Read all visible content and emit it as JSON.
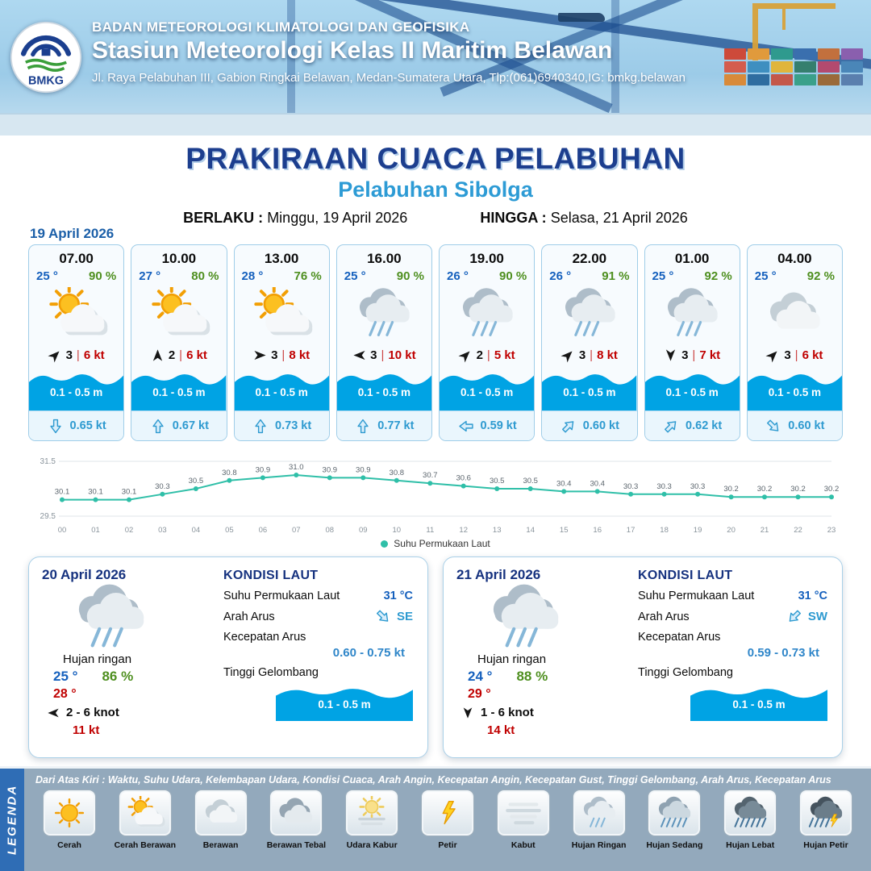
{
  "colors": {
    "accent_dark_blue": "#1c3e8e",
    "accent_light_blue": "#2e9ad0",
    "wave_blue": "#00a3e4",
    "humidity_green": "#4e8f1f",
    "alert_red": "#c00000",
    "sst_line_teal": "#2fbfa8"
  },
  "header": {
    "org": "BADAN METEOROLOGI KLIMATOLOGI DAN GEOFISIKA",
    "station": "Stasiun Meteorologi Kelas II Maritim Belawan",
    "address": "Jl. Raya Pelabuhan III, Gabion Ringkai Belawan, Medan-Sumatera Utara, Tlp:(061)6940340,IG: bmkg.belawan",
    "logo_label": "BMKG"
  },
  "title": {
    "main": "PRAKIRAAN CUACA PELABUHAN",
    "port": "Pelabuhan Sibolga",
    "berlaku_label": "BERLAKU :",
    "berlaku_value": "Minggu, 19 April 2026",
    "hingga_label": "HINGGA :",
    "hingga_value": "Selasa, 21 April 2026"
  },
  "forecast_date": "19 April 2026",
  "hourly": [
    {
      "time": "07.00",
      "temp": "25 °",
      "rh": "90 %",
      "icon": "cerah-berawan",
      "wind_dir": "NE",
      "wind_num": "3",
      "gust": "6 kt",
      "wave": "0.1 - 0.5 m",
      "current_dir": "S",
      "current": "0.65 kt"
    },
    {
      "time": "10.00",
      "temp": "27 °",
      "rh": "80 %",
      "icon": "cerah-berawan",
      "wind_dir": "N",
      "wind_num": "2",
      "gust": "6 kt",
      "wave": "0.1 - 0.5 m",
      "current_dir": "N",
      "current": "0.67 kt"
    },
    {
      "time": "13.00",
      "temp": "28 °",
      "rh": "76 %",
      "icon": "cerah-berawan",
      "wind_dir": "E",
      "wind_num": "3",
      "gust": "8 kt",
      "wave": "0.1 - 0.5 m",
      "current_dir": "N",
      "current": "0.73 kt"
    },
    {
      "time": "16.00",
      "temp": "25 °",
      "rh": "90 %",
      "icon": "hujan-ringan",
      "wind_dir": "W",
      "wind_num": "3",
      "gust": "10 kt",
      "wave": "0.1 - 0.5 m",
      "current_dir": "N",
      "current": "0.77 kt"
    },
    {
      "time": "19.00",
      "temp": "26 °",
      "rh": "90 %",
      "icon": "hujan-ringan",
      "wind_dir": "NE",
      "wind_num": "2",
      "gust": "5 kt",
      "wave": "0.1 - 0.5 m",
      "current_dir": "W",
      "current": "0.59 kt"
    },
    {
      "time": "22.00",
      "temp": "26 °",
      "rh": "91 %",
      "icon": "hujan-ringan",
      "wind_dir": "NE",
      "wind_num": "3",
      "gust": "8 kt",
      "wave": "0.1 - 0.5 m",
      "current_dir": "NE",
      "current": "0.60 kt"
    },
    {
      "time": "01.00",
      "temp": "25 °",
      "rh": "92 %",
      "icon": "hujan-ringan",
      "wind_dir": "S",
      "wind_num": "3",
      "gust": "7 kt",
      "wave": "0.1 - 0.5 m",
      "current_dir": "NE",
      "current": "0.62 kt"
    },
    {
      "time": "04.00",
      "temp": "25 °",
      "rh": "92 %",
      "icon": "berawan",
      "wind_dir": "NE",
      "wind_num": "3",
      "gust": "6 kt",
      "wave": "0.1 - 0.5 m",
      "current_dir": "SE",
      "current": "0.60 kt"
    }
  ],
  "chart_data": {
    "type": "line",
    "title": "",
    "x": [
      "00",
      "01",
      "02",
      "03",
      "04",
      "05",
      "06",
      "07",
      "08",
      "09",
      "10",
      "11",
      "12",
      "13",
      "14",
      "15",
      "16",
      "17",
      "18",
      "19",
      "20",
      "21",
      "22",
      "23"
    ],
    "series": [
      {
        "name": "Suhu Permukaan Laut",
        "values": [
          30.1,
          30.1,
          30.1,
          30.3,
          30.5,
          30.8,
          30.9,
          31.0,
          30.9,
          30.9,
          30.8,
          30.7,
          30.6,
          30.5,
          30.5,
          30.4,
          30.4,
          30.3,
          30.3,
          30.3,
          30.2,
          30.2,
          30.2,
          30.2
        ]
      }
    ],
    "ylim": [
      29.5,
      31.5
    ],
    "yticks": [
      29.5,
      31.5
    ],
    "grid": true,
    "legend_position": "bottom",
    "line_color": "#2fbfa8"
  },
  "labels": {
    "kondisi_laut": "KONDISI LAUT",
    "sst": "Suhu Permukaan Laut",
    "arah_arus": "Arah Arus",
    "kecepatan_arus": "Kecepatan Arus",
    "tinggi_gelombang": "Tinggi Gelombang"
  },
  "daily": [
    {
      "date": "20 April 2026",
      "icon": "hujan-ringan",
      "condition": "Hujan ringan",
      "temp_min": "25 °",
      "rh": "86 %",
      "temp_max": "28 °",
      "wind_dir": "W",
      "wind_range": "2 - 6 knot",
      "gust": "11 kt",
      "sst": "31 °C",
      "current_dir": "SE",
      "current_speed": "0.60 - 0.75 kt",
      "wave": "0.1 - 0.5 m"
    },
    {
      "date": "21 April 2026",
      "icon": "hujan-ringan",
      "condition": "Hujan ringan",
      "temp_min": "24 °",
      "rh": "88 %",
      "temp_max": "29 °",
      "wind_dir": "S",
      "wind_range": "1 - 6 knot",
      "gust": "14 kt",
      "sst": "31 °C",
      "current_dir": "SW",
      "current_speed": "0.59 - 0.73 kt",
      "wave": "0.1 - 0.5 m"
    }
  ],
  "legend": {
    "title": "LEGENDA",
    "note": "Dari Atas Kiri : Waktu, Suhu Udara, Kelembapan Udara, Kondisi Cuaca, Arah Angin, Kecepatan Angin, Kecepatan Gust, Tinggi Gelombang, Arah Arus, Kecepatan Arus",
    "items": [
      {
        "icon": "cerah",
        "label": "Cerah"
      },
      {
        "icon": "cerah-berawan",
        "label": "Cerah Berawan"
      },
      {
        "icon": "berawan",
        "label": "Berawan"
      },
      {
        "icon": "berawan-tebal",
        "label": "Berawan Tebal"
      },
      {
        "icon": "udara-kabur",
        "label": "Udara Kabur"
      },
      {
        "icon": "petir",
        "label": "Petir"
      },
      {
        "icon": "kabut",
        "label": "Kabut"
      },
      {
        "icon": "hujan-ringan",
        "label": "Hujan Ringan"
      },
      {
        "icon": "hujan-sedang",
        "label": "Hujan Sedang"
      },
      {
        "icon": "hujan-lebat",
        "label": "Hujan Lebat"
      },
      {
        "icon": "hujan-petir",
        "label": "Hujan Petir"
      }
    ]
  }
}
